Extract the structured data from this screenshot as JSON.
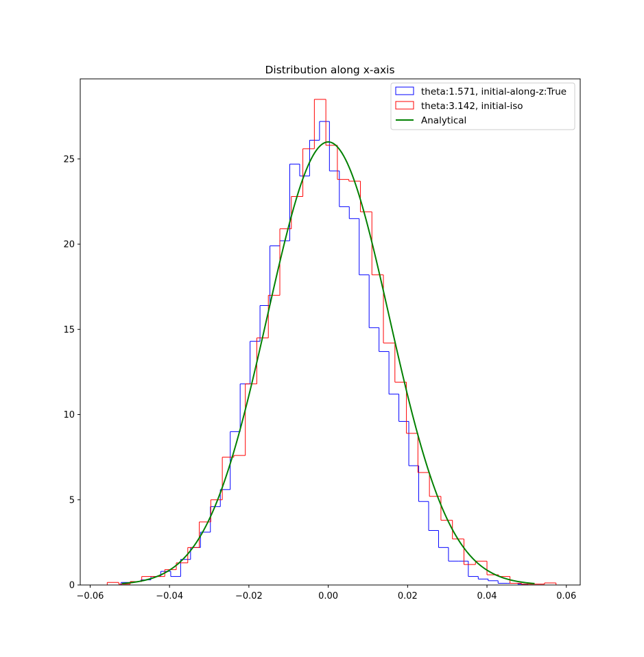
{
  "chart_data": {
    "type": "histogram",
    "title": "Distribution along x-axis",
    "xlabel": "",
    "ylabel": "",
    "xlim": [
      -0.0625,
      0.0635
    ],
    "ylim": [
      0,
      29.7
    ],
    "xticks": [
      -0.06,
      -0.04,
      -0.02,
      0.0,
      0.02,
      0.04,
      0.06
    ],
    "xtick_labels": [
      "−0.06",
      "−0.04",
      "−0.02",
      "0.00",
      "0.02",
      "0.04",
      "0.06"
    ],
    "yticks": [
      0,
      5,
      10,
      15,
      20,
      25
    ],
    "ytick_labels": [
      "0",
      "5",
      "10",
      "15",
      "20",
      "25"
    ],
    "grid": false,
    "legend_position": "upper right",
    "series": [
      {
        "name": "theta:1.571, initial-along-z:True",
        "style": "step",
        "color": "#0000ff",
        "bin_edges": [
          -0.0522,
          -0.0497,
          -0.0472,
          -0.0447,
          -0.0422,
          -0.0397,
          -0.0372,
          -0.0347,
          -0.0322,
          -0.0297,
          -0.0272,
          -0.0247,
          -0.0222,
          -0.0197,
          -0.0172,
          -0.0147,
          -0.0122,
          -0.0097,
          -0.0072,
          -0.0047,
          -0.0022,
          0.0003,
          0.0028,
          0.0053,
          0.0078,
          0.0103,
          0.0128,
          0.0153,
          0.0178,
          0.0203,
          0.0228,
          0.0253,
          0.0278,
          0.0303,
          0.0328,
          0.0353,
          0.0378,
          0.0403,
          0.0428,
          0.0453,
          0.0478,
          0.0503
        ],
        "values": [
          0.15,
          0.2,
          0.3,
          0.5,
          0.8,
          0.5,
          1.5,
          2.2,
          3.1,
          4.6,
          5.6,
          9.0,
          11.8,
          14.3,
          16.4,
          19.9,
          20.2,
          24.7,
          24.0,
          26.1,
          27.2,
          24.3,
          22.2,
          21.5,
          18.2,
          15.1,
          13.7,
          11.2,
          9.6,
          7.0,
          4.9,
          3.2,
          2.2,
          1.4,
          1.4,
          0.5,
          0.35,
          0.25,
          0.1,
          0.1,
          0.05
        ]
      },
      {
        "name": "theta:3.142, initial-iso",
        "style": "step",
        "color": "#ff0000",
        "bin_edges": [
          -0.0557,
          -0.0528,
          -0.0499,
          -0.047,
          -0.0441,
          -0.0412,
          -0.0383,
          -0.0354,
          -0.0325,
          -0.0296,
          -0.0267,
          -0.0238,
          -0.0209,
          -0.018,
          -0.0151,
          -0.0122,
          -0.0093,
          -0.0064,
          -0.0035,
          -0.0006,
          0.0023,
          0.0052,
          0.0081,
          0.011,
          0.0139,
          0.0168,
          0.0197,
          0.0226,
          0.0255,
          0.0284,
          0.0313,
          0.0342,
          0.0371,
          0.04,
          0.0429,
          0.0458,
          0.0487,
          0.0516,
          0.0545,
          0.0574
        ],
        "values": [
          0.15,
          0.05,
          0.2,
          0.5,
          0.5,
          0.9,
          1.3,
          2.2,
          3.7,
          5.0,
          7.5,
          7.6,
          11.8,
          14.5,
          17.0,
          20.9,
          22.8,
          25.6,
          28.5,
          25.8,
          23.8,
          23.7,
          21.9,
          18.2,
          14.2,
          11.9,
          8.9,
          6.6,
          5.2,
          3.8,
          2.7,
          1.2,
          1.4,
          0.6,
          0.5,
          0.1,
          0.05,
          0.05,
          0.12
        ]
      },
      {
        "name": "Analytical",
        "style": "line",
        "color": "#008000",
        "distribution": "gaussian",
        "mean": 0.0,
        "sigma": 0.01535,
        "peak": 26.0,
        "x_range": [
          -0.052,
          0.052
        ]
      }
    ]
  }
}
